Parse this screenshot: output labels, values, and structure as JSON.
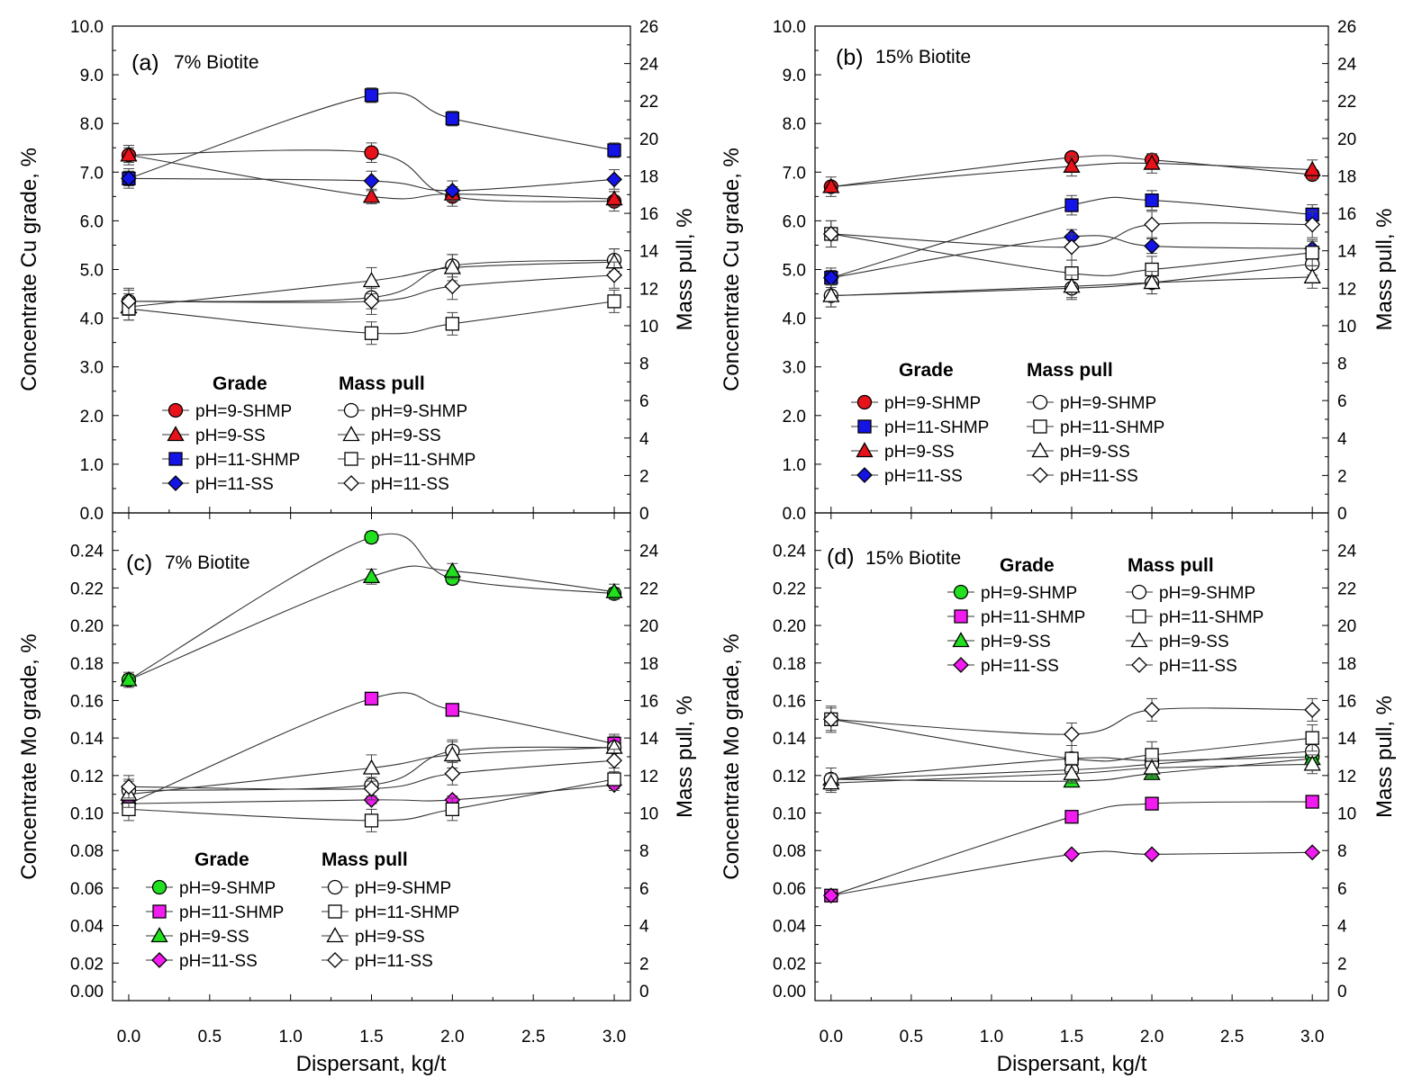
{
  "colors": {
    "red": "#e8121b",
    "blue": "#1414e6",
    "green": "#22e01f",
    "magenta": "#f21bf0",
    "open": "#ffffff",
    "stroke": "#000000"
  },
  "figure": {
    "xlabel": "Dispersant, kg/t"
  },
  "chart_data": [
    {
      "type": "line",
      "panel": "a",
      "tag": "(a)",
      "title": "7% Biotite",
      "ylabel": "Concentrate Cu grade, %",
      "y2label": "Mass pull, %",
      "xlim": [
        -0.1,
        3.1
      ],
      "ylim": [
        0,
        10
      ],
      "y2lim": [
        0,
        26
      ],
      "xticks": [
        "0.0",
        "0.5",
        "1.0",
        "1.5",
        "2.0",
        "2.5",
        "3.0"
      ],
      "yticks": [
        "0.0",
        "1.0",
        "2.0",
        "3.0",
        "4.0",
        "5.0",
        "6.0",
        "7.0",
        "8.0",
        "9.0",
        "10.0"
      ],
      "y2ticks": [
        "0",
        "2",
        "4",
        "6",
        "8",
        "10",
        "12",
        "14",
        "16",
        "18",
        "20",
        "22",
        "24",
        "26"
      ],
      "legend_headers": {
        "grade": "Grade",
        "mass": "Mass pull"
      },
      "x": [
        0,
        1.5,
        2,
        3
      ],
      "series": [
        {
          "name": "pH=9-SHMP",
          "group": "grade",
          "marker": "circle",
          "fill": "red",
          "axis": "left",
          "values": [
            7.35,
            7.4,
            6.5,
            6.4
          ],
          "err": 0.2
        },
        {
          "name": "pH=9-SS",
          "group": "grade",
          "marker": "triangle",
          "fill": "red",
          "axis": "left",
          "values": [
            7.35,
            6.5,
            6.55,
            6.45
          ],
          "err": 0.15
        },
        {
          "name": "pH=11-SHMP",
          "group": "grade",
          "marker": "square",
          "fill": "blue",
          "axis": "left",
          "values": [
            6.87,
            8.58,
            8.1,
            7.45
          ],
          "err": 0.15
        },
        {
          "name": "pH=11-SS",
          "group": "grade",
          "marker": "diamond",
          "fill": "blue",
          "axis": "left",
          "values": [
            6.87,
            6.82,
            6.62,
            6.85
          ],
          "err": 0.2
        },
        {
          "name": "pH=9-SHMP",
          "group": "mass",
          "marker": "circle",
          "fill": "open",
          "axis": "right",
          "values": [
            11.3,
            11.5,
            13.2,
            13.5
          ],
          "err": 0.6
        },
        {
          "name": "pH=9-SS",
          "group": "mass",
          "marker": "triangle",
          "fill": "open",
          "axis": "right",
          "values": [
            11.0,
            12.4,
            13.1,
            13.4
          ],
          "err": 0.7
        },
        {
          "name": "pH=11-SHMP",
          "group": "mass",
          "marker": "square",
          "fill": "open",
          "axis": "right",
          "values": [
            10.9,
            9.6,
            10.1,
            11.3
          ],
          "err": 0.6
        },
        {
          "name": "pH=11-SS",
          "group": "mass",
          "marker": "diamond",
          "fill": "open",
          "axis": "right",
          "values": [
            11.3,
            11.3,
            12.1,
            12.7
          ],
          "err": 0.7
        }
      ]
    },
    {
      "type": "line",
      "panel": "b",
      "tag": "(b)",
      "title": "15% Biotite",
      "ylabel": "Concentrate Cu grade, %",
      "y2label": "Mass pull, %",
      "xlim": [
        -0.1,
        3.1
      ],
      "ylim": [
        0,
        10
      ],
      "y2lim": [
        0,
        26
      ],
      "xticks": [
        "0.0",
        "0.5",
        "1.0",
        "1.5",
        "2.0",
        "2.5",
        "3.0"
      ],
      "yticks": [
        "0.0",
        "1.0",
        "2.0",
        "3.0",
        "4.0",
        "5.0",
        "6.0",
        "7.0",
        "8.0",
        "9.0",
        "10.0"
      ],
      "y2ticks": [
        "0",
        "2",
        "4",
        "6",
        "8",
        "10",
        "12",
        "14",
        "16",
        "18",
        "20",
        "22",
        "24",
        "26"
      ],
      "legend_headers": {
        "grade": "Grade",
        "mass": "Mass pull"
      },
      "x": [
        0,
        1.5,
        2,
        3
      ],
      "series": [
        {
          "name": "pH=9-SHMP",
          "group": "grade",
          "marker": "circle",
          "fill": "red",
          "axis": "left",
          "values": [
            6.7,
            7.3,
            7.25,
            6.95
          ],
          "err": 0.1
        },
        {
          "name": "pH=11-SHMP",
          "group": "grade",
          "marker": "square",
          "fill": "blue",
          "axis": "left",
          "values": [
            4.83,
            6.32,
            6.42,
            6.13
          ],
          "err": 0.2
        },
        {
          "name": "pH=9-SS",
          "group": "grade",
          "marker": "triangle",
          "fill": "red",
          "axis": "left",
          "values": [
            6.7,
            7.12,
            7.18,
            7.05
          ],
          "err": 0.2
        },
        {
          "name": "pH=11-SS",
          "group": "grade",
          "marker": "diamond",
          "fill": "blue",
          "axis": "left",
          "values": [
            4.83,
            5.67,
            5.48,
            5.43
          ],
          "err": 0.15
        },
        {
          "name": "pH=9-SHMP",
          "group": "mass",
          "marker": "circle",
          "fill": "open",
          "axis": "right",
          "values": [
            11.6,
            12.0,
            12.3,
            13.3
          ],
          "err": 0.6
        },
        {
          "name": "pH=11-SHMP",
          "group": "mass",
          "marker": "square",
          "fill": "open",
          "axis": "right",
          "values": [
            14.9,
            12.8,
            13.0,
            13.9
          ],
          "err": 0.7
        },
        {
          "name": "pH=9-SS",
          "group": "mass",
          "marker": "triangle",
          "fill": "open",
          "axis": "right",
          "values": [
            11.6,
            12.1,
            12.3,
            12.6
          ],
          "err": 0.6
        },
        {
          "name": "pH=11-SS",
          "group": "mass",
          "marker": "diamond",
          "fill": "open",
          "axis": "right",
          "values": [
            14.9,
            14.2,
            15.4,
            15.4
          ],
          "err": 0.7
        }
      ]
    },
    {
      "type": "line",
      "panel": "c",
      "tag": "(c)",
      "title": "7% Biotite",
      "ylabel": "Concentrate Mo grade, %",
      "y2label": "Mass pull, %",
      "xlim": [
        -0.1,
        3.1
      ],
      "ylim": [
        0,
        0.26
      ],
      "y2lim": [
        0,
        26
      ],
      "xticks": [
        "0.0",
        "0.5",
        "1.0",
        "1.5",
        "2.0",
        "2.5",
        "3.0"
      ],
      "yticks": [
        "0.00",
        "0.02",
        "0.04",
        "0.06",
        "0.08",
        "0.10",
        "0.12",
        "0.14",
        "0.16",
        "0.18",
        "0.20",
        "0.22",
        "0.24"
      ],
      "y2ticks": [
        "0",
        "2",
        "4",
        "6",
        "8",
        "10",
        "12",
        "14",
        "16",
        "18",
        "20",
        "22",
        "24"
      ],
      "legend_headers": {
        "grade": "Grade",
        "mass": "Mass pull"
      },
      "x": [
        0,
        1.5,
        2,
        3
      ],
      "series": [
        {
          "name": "pH=9-SHMP",
          "group": "grade",
          "marker": "circle",
          "fill": "green",
          "axis": "left",
          "values": [
            0.171,
            0.247,
            0.225,
            0.217
          ],
          "err": 0.003
        },
        {
          "name": "pH=11-SHMP",
          "group": "grade",
          "marker": "square",
          "fill": "magenta",
          "axis": "left",
          "values": [
            0.105,
            0.161,
            0.155,
            0.137
          ],
          "err": 0.003
        },
        {
          "name": "pH=9-SS",
          "group": "grade",
          "marker": "triangle",
          "fill": "green",
          "axis": "left",
          "values": [
            0.171,
            0.226,
            0.229,
            0.218
          ],
          "err": 0.004
        },
        {
          "name": "pH=11-SS",
          "group": "grade",
          "marker": "diamond",
          "fill": "magenta",
          "axis": "left",
          "values": [
            0.105,
            0.107,
            0.107,
            0.115
          ],
          "err": 0.002
        },
        {
          "name": "pH=9-SHMP",
          "group": "mass",
          "marker": "circle",
          "fill": "open",
          "axis": "right",
          "values": [
            11.2,
            11.5,
            13.3,
            13.5
          ],
          "err": 0.6
        },
        {
          "name": "pH=11-SHMP",
          "group": "mass",
          "marker": "square",
          "fill": "open",
          "axis": "right",
          "values": [
            10.2,
            9.6,
            10.2,
            11.8
          ],
          "err": 0.6
        },
        {
          "name": "pH=9-SS",
          "group": "mass",
          "marker": "triangle",
          "fill": "open",
          "axis": "right",
          "values": [
            11.0,
            12.4,
            13.1,
            13.5
          ],
          "err": 0.7
        },
        {
          "name": "pH=11-SS",
          "group": "mass",
          "marker": "diamond",
          "fill": "open",
          "axis": "right",
          "values": [
            11.4,
            11.3,
            12.1,
            12.8
          ],
          "err": 0.6
        }
      ]
    },
    {
      "type": "line",
      "panel": "d",
      "tag": "(d)",
      "title": "15% Biotite",
      "ylabel": "Concentrate Mo grade, %",
      "y2label": "Mass pull, %",
      "xlim": [
        -0.1,
        3.1
      ],
      "ylim": [
        0,
        0.26
      ],
      "y2lim": [
        0,
        26
      ],
      "xticks": [
        "0.0",
        "0.5",
        "1.0",
        "1.5",
        "2.0",
        "2.5",
        "3.0"
      ],
      "yticks": [
        "0.00",
        "0.02",
        "0.04",
        "0.06",
        "0.08",
        "0.10",
        "0.12",
        "0.14",
        "0.16",
        "0.18",
        "0.20",
        "0.22",
        "0.24"
      ],
      "y2ticks": [
        "0",
        "2",
        "4",
        "6",
        "8",
        "10",
        "12",
        "14",
        "16",
        "18",
        "20",
        "22",
        "24"
      ],
      "legend_headers": {
        "grade": "Grade",
        "mass": "Mass pull"
      },
      "x": [
        0,
        1.5,
        2,
        3
      ],
      "series": [
        {
          "name": "pH=9-SHMP",
          "group": "grade",
          "marker": "circle",
          "fill": "green",
          "axis": "left",
          "values": [
            0.118,
            0.129,
            0.128,
            0.13
          ],
          "err": 0.002
        },
        {
          "name": "pH=11-SHMP",
          "group": "grade",
          "marker": "square",
          "fill": "magenta",
          "axis": "left",
          "values": [
            0.056,
            0.098,
            0.105,
            0.106
          ],
          "err": 0.002
        },
        {
          "name": "pH=9-SS",
          "group": "grade",
          "marker": "triangle",
          "fill": "green",
          "axis": "left",
          "values": [
            0.118,
            0.117,
            0.121,
            0.129
          ],
          "err": 0.002
        },
        {
          "name": "pH=11-SS",
          "group": "grade",
          "marker": "diamond",
          "fill": "magenta",
          "axis": "left",
          "values": [
            0.056,
            0.078,
            0.078,
            0.079
          ],
          "err": 0.001
        },
        {
          "name": "pH=9-SHMP",
          "group": "mass",
          "marker": "circle",
          "fill": "open",
          "axis": "right",
          "values": [
            11.8,
            12.3,
            12.6,
            13.3
          ],
          "err": 0.6
        },
        {
          "name": "pH=11-SHMP",
          "group": "mass",
          "marker": "square",
          "fill": "open",
          "axis": "right",
          "values": [
            15.0,
            12.9,
            13.1,
            14.0
          ],
          "err": 0.7
        },
        {
          "name": "pH=9-SS",
          "group": "mass",
          "marker": "triangle",
          "fill": "open",
          "axis": "right",
          "values": [
            11.6,
            12.1,
            12.4,
            12.6
          ],
          "err": 0.5
        },
        {
          "name": "pH=11-SS",
          "group": "mass",
          "marker": "diamond",
          "fill": "open",
          "axis": "right",
          "values": [
            15.0,
            14.2,
            15.5,
            15.5
          ],
          "err": 0.6
        }
      ]
    }
  ]
}
